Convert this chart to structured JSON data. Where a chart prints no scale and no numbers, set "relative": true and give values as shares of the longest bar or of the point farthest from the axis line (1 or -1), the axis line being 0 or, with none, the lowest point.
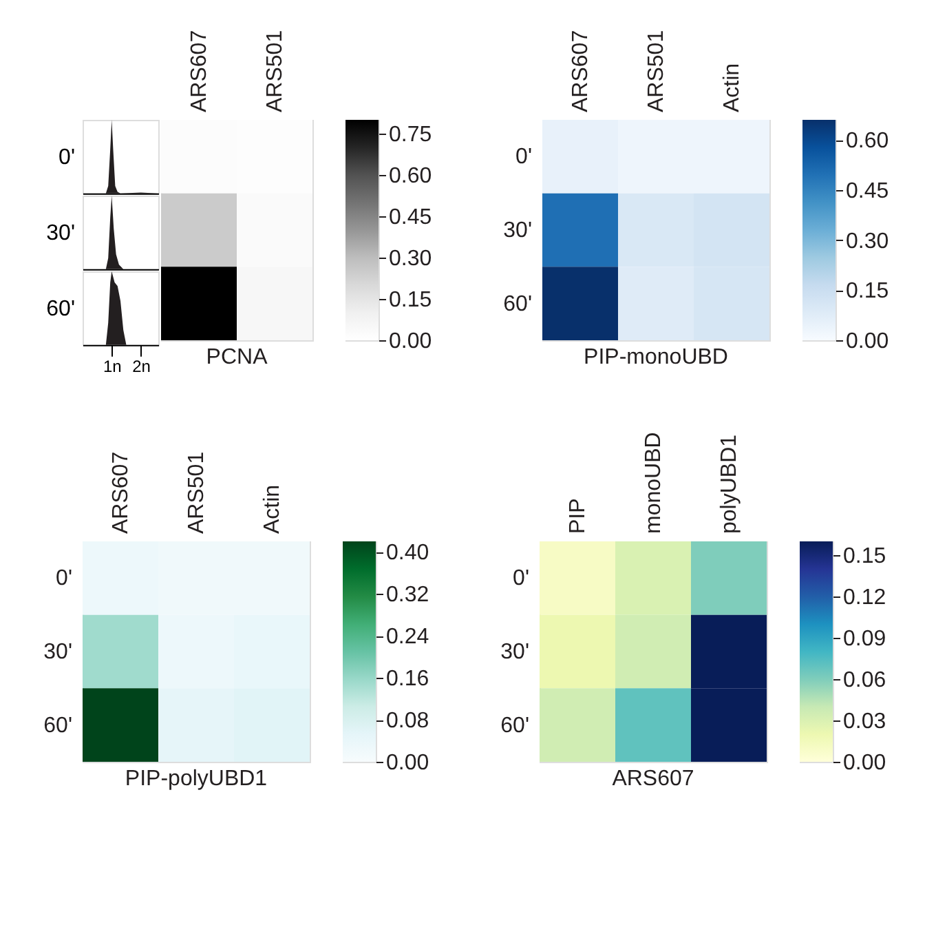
{
  "chart_data": [
    {
      "type": "area",
      "relative": true,
      "color": "#231f20",
      "x": [
        0,
        0.8,
        0.88,
        0.95,
        1.0,
        1.05,
        1.12,
        1.2,
        1.3,
        2.0,
        2.6
      ],
      "values": [
        0,
        0,
        0.1,
        0.6,
        1,
        0.6,
        0.1,
        0.02,
        0,
        0.01,
        0
      ],
      "xlim": [
        0,
        2.6
      ],
      "tick_labels": false
    },
    {
      "type": "area",
      "relative": true,
      "color": "#231f20",
      "x": [
        0,
        0.8,
        0.88,
        0.95,
        1.0,
        1.07,
        1.15,
        1.25,
        1.4,
        2.6
      ],
      "values": [
        0,
        0,
        0.15,
        0.7,
        1,
        0.55,
        0.2,
        0.06,
        0,
        0
      ],
      "xlim": [
        0,
        2.6
      ],
      "tick_labels": false
    },
    {
      "type": "area",
      "relative": true,
      "color": "#231f20",
      "x": [
        0,
        0.8,
        0.88,
        0.95,
        1.0,
        1.1,
        1.2,
        1.3,
        1.4,
        1.5,
        2.6
      ],
      "values": [
        0,
        0,
        0.3,
        0.85,
        1,
        0.85,
        0.8,
        0.6,
        0.2,
        0,
        0
      ],
      "xlim": [
        0,
        2.6
      ],
      "xticks": [
        {
          "value": 1,
          "label": "1n"
        },
        {
          "value": 2,
          "label": "2n"
        }
      ],
      "tick_labels": "x"
    },
    {
      "type": "heatmap",
      "title": "PCNA",
      "categories": [
        "ARS607",
        "ARS501"
      ],
      "y_categories": [
        "0'",
        "30'",
        "60'"
      ],
      "cells": [
        [
          0.02,
          0.01
        ],
        [
          0.25,
          0.03
        ],
        [
          0.8,
          0.05
        ]
      ],
      "clim": [
        0,
        0.8
      ],
      "cticks": [
        {
          "value": 0,
          "label": "0.00"
        },
        0.15,
        {
          "value": 0.3,
          "label": "0.30"
        },
        0.45,
        {
          "value": 0.6,
          "label": "0.60"
        },
        0.75
      ],
      "colors": [
        "#ffffff",
        "#f0f0f0",
        "#d9d9d9",
        "#bdbdbd",
        "#969696",
        "#737373",
        "#525252",
        "#252525",
        "#000000"
      ],
      "tick_labels": "x"
    },
    {
      "type": "heatmap",
      "title": "PIP-monoUBD",
      "categories": [
        "ARS607",
        "ARS501",
        "Actin"
      ],
      "y_categories": [
        "0'",
        "30'",
        "60'"
      ],
      "cells": [
        [
          0.05,
          0.03,
          0.03
        ],
        [
          0.5,
          0.1,
          0.12
        ],
        [
          0.66,
          0.08,
          0.11
        ]
      ],
      "clim": [
        0,
        0.66
      ],
      "cticks": [
        {
          "value": 0,
          "label": "0.00"
        },
        0.15,
        {
          "value": 0.3,
          "label": "0.30"
        },
        0.45,
        {
          "value": 0.6,
          "label": "0.60"
        }
      ],
      "colors": [
        "#f7fbff",
        "#deebf7",
        "#c6dbef",
        "#9ecae1",
        "#6baed6",
        "#4292c6",
        "#2171b5",
        "#08519c",
        "#08306b"
      ]
    },
    {
      "type": "heatmap",
      "title": "PIP-polyUBD1",
      "categories": [
        "ARS607",
        "ARS501",
        "Actin"
      ],
      "y_categories": [
        "0'",
        "30'",
        "60'"
      ],
      "cells": [
        [
          0.03,
          0.02,
          0.02
        ],
        [
          0.15,
          0.03,
          0.04
        ],
        [
          0.42,
          0.05,
          0.06
        ]
      ],
      "clim": [
        0,
        0.42
      ],
      "cticks": [
        {
          "value": 0,
          "label": "0.00"
        },
        0.08,
        0.16,
        0.24,
        0.32,
        {
          "value": 0.4,
          "label": "0.40"
        }
      ],
      "colors": [
        "#f7fcfd",
        "#e5f5f9",
        "#ccece6",
        "#99d8c9",
        "#66c2a4",
        "#41ae76",
        "#238b45",
        "#006d2c",
        "#00441b"
      ]
    },
    {
      "type": "heatmap",
      "title": "ARS607",
      "categories": [
        "PIP",
        "monoUBD",
        "polyUBD1"
      ],
      "y_categories": [
        "0'",
        "30'",
        "60'"
      ],
      "cells": [
        [
          0.01,
          0.03,
          0.06
        ],
        [
          0.02,
          0.035,
          0.16
        ],
        [
          0.035,
          0.07,
          0.16
        ]
      ],
      "clim": [
        0,
        0.16
      ],
      "cticks": [
        {
          "value": 0,
          "label": "0.00"
        },
        0.03,
        0.06,
        0.09,
        0.12,
        0.15
      ],
      "colors": [
        "#ffffd9",
        "#edf8b1",
        "#c7e9b4",
        "#7fcdbb",
        "#41b6c4",
        "#1d91c0",
        "#225ea8",
        "#253494",
        "#081d58"
      ]
    }
  ]
}
